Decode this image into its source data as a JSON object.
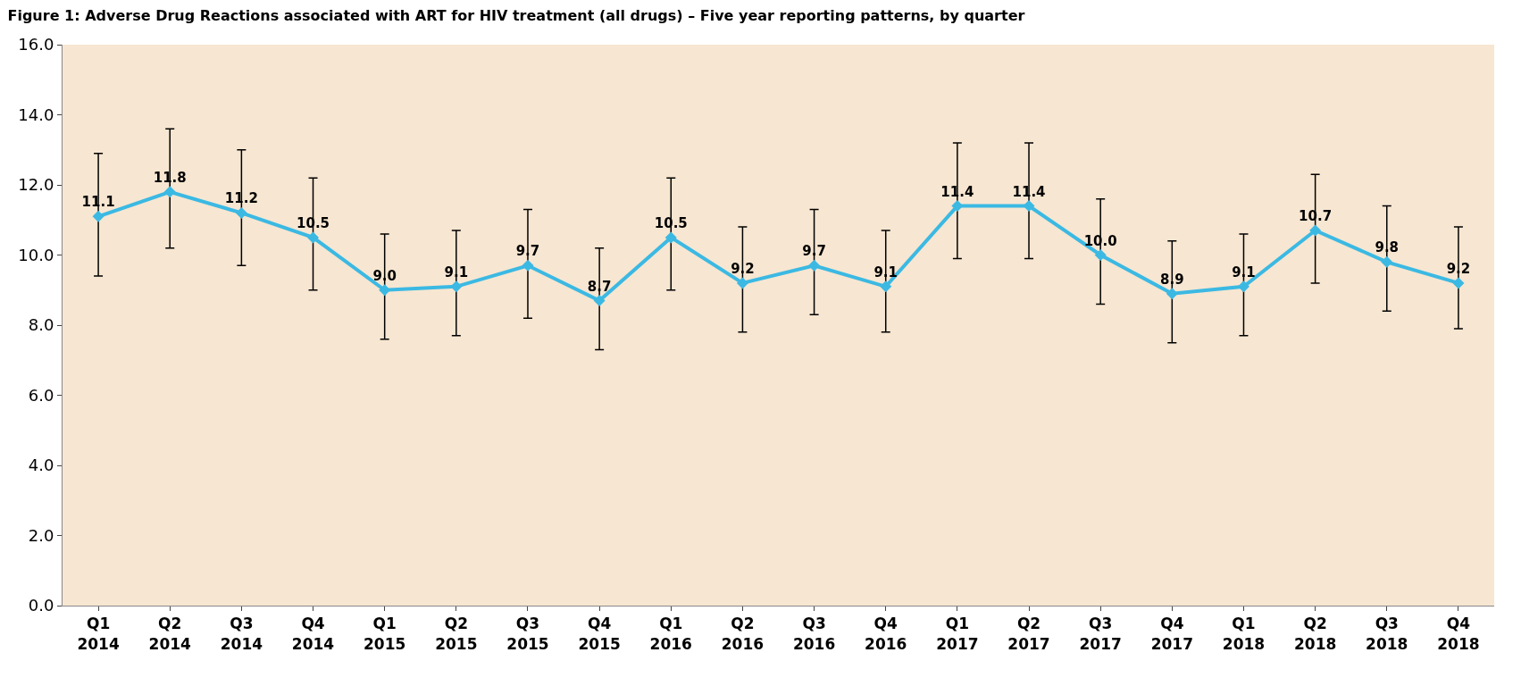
{
  "chart_data": {
    "type": "line",
    "title": "Figure 1: Adverse Drug Reactions associated with ART for HIV treatment (all drugs) – Five year reporting patterns, by quarter",
    "categories": [
      "Q1 2014",
      "Q2 2014",
      "Q3 2014",
      "Q4 2014",
      "Q1 2015",
      "Q2 2015",
      "Q3 2015",
      "Q4 2015",
      "Q1 2016",
      "Q2 2016",
      "Q3 2016",
      "Q4 2016",
      "Q1 2017",
      "Q2 2017",
      "Q3 2017",
      "Q4 2017",
      "Q1 2018",
      "Q2 2018",
      "Q3 2018",
      "Q4 2018"
    ],
    "series": [
      {
        "color": "#3bb9e3",
        "values": [
          11.1,
          11.8,
          11.2,
          10.5,
          9.0,
          9.1,
          9.7,
          8.7,
          10.5,
          9.2,
          9.7,
          9.1,
          11.4,
          11.4,
          10.0,
          8.9,
          9.1,
          10.7,
          9.8,
          9.2
        ],
        "value_labels": [
          "11.1",
          "11.8",
          "11.2",
          "10.5",
          "9.0",
          "9.1",
          "9.7",
          "8.7",
          "10.5",
          "9.2",
          "9.7",
          "9.1",
          "11.4",
          "11.4",
          "10.0",
          "8.9",
          "9.1",
          "10.7",
          "9.8",
          "9.2"
        ],
        "errors": [
          [
            9.4,
            12.9
          ],
          [
            10.2,
            13.6
          ],
          [
            9.7,
            13.0
          ],
          [
            9.0,
            12.2
          ],
          [
            7.6,
            10.6
          ],
          [
            7.7,
            10.7
          ],
          [
            8.2,
            11.3
          ],
          [
            7.3,
            10.2
          ],
          [
            9.0,
            12.2
          ],
          [
            7.8,
            10.8
          ],
          [
            8.3,
            11.3
          ],
          [
            7.8,
            10.7
          ],
          [
            9.9,
            13.2
          ],
          [
            9.9,
            13.2
          ],
          [
            8.6,
            11.6
          ],
          [
            7.5,
            10.4
          ],
          [
            7.7,
            10.6
          ],
          [
            9.2,
            12.3
          ],
          [
            8.4,
            11.4
          ],
          [
            7.9,
            10.8
          ]
        ]
      }
    ],
    "ylim": [
      0,
      16
    ],
    "yticks": [
      {
        "value": 0,
        "label": "0.0"
      },
      {
        "value": 2,
        "label": "2.0"
      },
      {
        "value": 4,
        "label": "4.0"
      },
      {
        "value": 6,
        "label": "6.0"
      },
      {
        "value": 8,
        "label": "8.0"
      },
      {
        "value": 10,
        "label": "10.0"
      },
      {
        "value": 12,
        "label": "12.0"
      },
      {
        "value": 14,
        "label": "14.0"
      },
      {
        "value": 16,
        "label": "16.0"
      }
    ],
    "marker": "diamond",
    "line_style": "solid",
    "grid": false,
    "legend": false
  }
}
